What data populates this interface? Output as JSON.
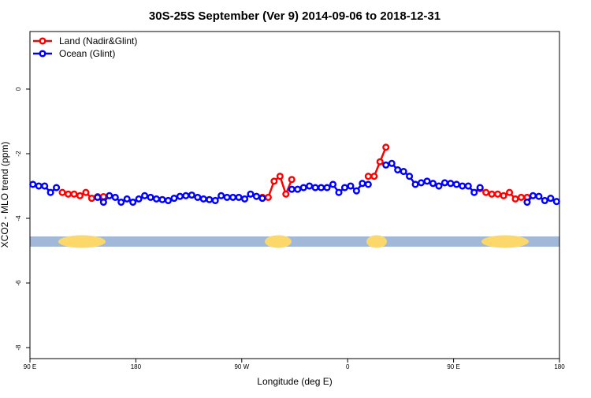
{
  "chart_data": {
    "type": "line",
    "title": "30S-25S September (Ver 9)   2014-09-06 to 2018-12-31",
    "x_label": "Longitude (deg E)",
    "y_label": "XCO2 - MLO trend (ppm)",
    "legend": "topleft",
    "xlim": [
      90,
      540
    ],
    "ylim": [
      -8.34,
      1.78
    ],
    "xticks": [
      {
        "value": 90,
        "label": "90 E"
      },
      {
        "value": 180,
        "label": "180"
      },
      {
        "value": 270,
        "label": "90 W"
      },
      {
        "value": 360,
        "label": "0"
      },
      {
        "value": 450,
        "label": "90 E"
      },
      {
        "value": 540,
        "label": "180"
      }
    ],
    "yticks": [
      0,
      -2,
      -4,
      -6,
      -8
    ],
    "x": [
      92.5,
      97.5,
      102.5,
      107.5,
      112.5,
      117.5,
      122.5,
      127.5,
      132.5,
      137.5,
      142.5,
      147.5,
      152.5,
      157.5,
      162.5,
      167.5,
      172.5,
      177.5,
      182.5,
      187.5,
      192.5,
      197.5,
      202.5,
      207.5,
      212.5,
      217.5,
      222.5,
      227.5,
      232.5,
      237.5,
      242.5,
      247.5,
      252.5,
      257.5,
      262.5,
      267.5,
      272.5,
      277.5,
      282.5,
      287.5,
      292.5,
      297.5,
      302.5,
      307.5,
      312.5,
      317.5,
      322.5,
      327.5,
      332.5,
      337.5,
      342.5,
      347.5,
      352.5,
      357.5,
      362.5,
      367.5,
      372.5,
      377.5,
      382.5,
      387.5,
      392.5,
      397.5,
      402.5,
      407.5,
      412.5,
      417.5,
      422.5,
      427.5,
      432.5,
      437.5,
      442.5,
      447.5,
      452.5,
      457.5,
      462.5,
      467.5,
      472.5,
      477.5,
      482.5,
      487.5,
      492.5,
      497.5,
      502.5,
      507.5,
      512.5,
      517.5,
      522.5,
      527.5,
      532.5,
      537.5
    ],
    "series": [
      {
        "name": "Land (Nadir&Glint)",
        "color": "#ff0000",
        "values": [
          null,
          null,
          null,
          null,
          null,
          -3.2,
          -3.25,
          -3.25,
          -3.3,
          -3.2,
          -3.38,
          -3.33,
          -3.33,
          null,
          null,
          null,
          null,
          null,
          null,
          null,
          null,
          null,
          null,
          null,
          null,
          null,
          null,
          null,
          null,
          null,
          null,
          null,
          null,
          null,
          null,
          null,
          null,
          null,
          null,
          -3.35,
          -3.35,
          -2.85,
          -2.7,
          -3.25,
          -2.8,
          null,
          null,
          null,
          null,
          null,
          null,
          null,
          null,
          null,
          null,
          null,
          null,
          -2.7,
          -2.7,
          -2.25,
          -1.8,
          null,
          null,
          null,
          null,
          null,
          null,
          null,
          null,
          null,
          null,
          null,
          null,
          null,
          null,
          null,
          -3.08,
          -3.2,
          -3.25,
          -3.25,
          -3.3,
          -3.2,
          -3.4,
          -3.35,
          -3.35,
          null,
          null,
          null,
          null,
          null
        ]
      },
      {
        "name": "Ocean (Glint)",
        "color": "#0000ff",
        "values": [
          -2.95,
          -3.0,
          -3.0,
          -3.2,
          -3.05,
          null,
          null,
          null,
          null,
          null,
          null,
          -3.35,
          -3.5,
          -3.3,
          -3.35,
          -3.5,
          -3.4,
          -3.5,
          -3.4,
          -3.3,
          -3.35,
          -3.4,
          -3.42,
          -3.45,
          -3.38,
          -3.32,
          -3.3,
          -3.28,
          -3.35,
          -3.4,
          -3.42,
          -3.45,
          -3.3,
          -3.35,
          -3.35,
          -3.35,
          -3.4,
          -3.25,
          -3.32,
          -3.38,
          null,
          null,
          null,
          null,
          -3.1,
          -3.1,
          -3.05,
          -3.0,
          -3.05,
          -3.05,
          -3.05,
          -2.95,
          -3.2,
          -3.05,
          -3.0,
          -3.15,
          -2.92,
          -2.95,
          null,
          null,
          -2.35,
          -2.3,
          -2.5,
          -2.55,
          -2.7,
          -2.95,
          -2.9,
          -2.85,
          -2.92,
          -3.0,
          -2.9,
          -2.92,
          -2.95,
          -3.0,
          -3.0,
          -3.2,
          -3.05,
          null,
          null,
          null,
          null,
          null,
          null,
          null,
          -3.5,
          -3.3,
          -3.32,
          -3.45,
          -3.38,
          -3.48
        ]
      }
    ]
  }
}
